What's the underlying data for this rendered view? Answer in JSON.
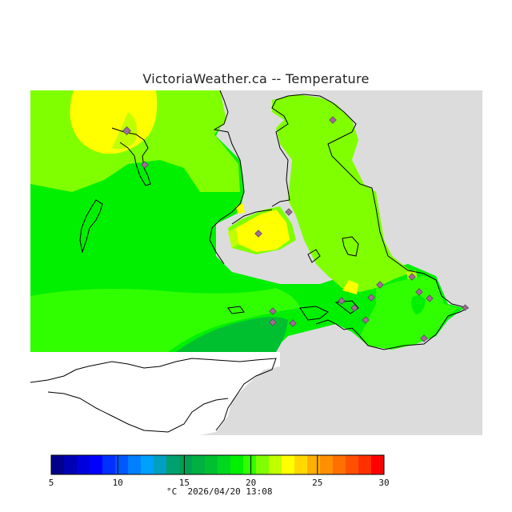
{
  "title": "VictoriaWeather.ca -- Temperature",
  "units": "°C",
  "timestamp": "2026/04/20  13:08",
  "colorbar": {
    "ticks": [
      5,
      10,
      15,
      20,
      25,
      30
    ],
    "min": 5,
    "max": 30,
    "colors": [
      "#00008c",
      "#0000b4",
      "#0000dc",
      "#0000ff",
      "#0030ff",
      "#0058ff",
      "#0080ff",
      "#00a0ff",
      "#00a0c0",
      "#00a070",
      "#00a050",
      "#00b040",
      "#00c030",
      "#00d820",
      "#00f000",
      "#30ff00",
      "#80ff00",
      "#c0ff00",
      "#ffff00",
      "#ffd800",
      "#ffb000",
      "#ff9000",
      "#ff7000",
      "#ff5000",
      "#ff3000",
      "#ff0000"
    ]
  },
  "map": {
    "colors": {
      "background": "#dcdcdc",
      "nodata": "#ffffff",
      "temp_20": "#80ff00",
      "temp_19": "#30ff00",
      "temp_18": "#00f000",
      "temp_17": "#00c030",
      "temp_21": "#c0ff00",
      "temp_22": "#ffff00",
      "station": "#a36a9a"
    }
  }
}
